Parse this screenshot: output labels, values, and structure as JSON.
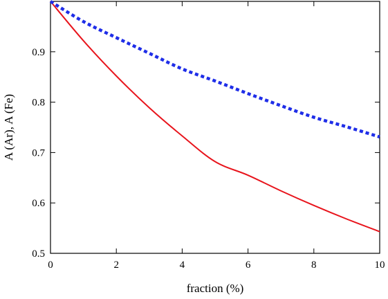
{
  "chart_data": {
    "type": "line",
    "title": "",
    "xlabel": "fraction (%)",
    "ylabel": "A (Ar), A (Fe)",
    "xlim": [
      0,
      10
    ],
    "ylim": [
      0.5,
      1.0
    ],
    "x_ticks": [
      0,
      2,
      4,
      6,
      8,
      10
    ],
    "x_tick_labels": [
      "0",
      "2",
      "4",
      "6",
      "8",
      "10"
    ],
    "y_ticks": [
      0.5,
      0.6,
      0.7,
      0.8,
      0.9
    ],
    "y_tick_labels": [
      "0.5",
      "0.6",
      "0.7",
      "0.8",
      "0.9"
    ],
    "grid": false,
    "legend": "none",
    "series": [
      {
        "color": "#e8141c",
        "style": "solid",
        "x": [
          0,
          1,
          2,
          3,
          4,
          5,
          6,
          7,
          8,
          9,
          10
        ],
        "y": [
          1.0,
          0.922,
          0.852,
          0.789,
          0.733,
          0.682,
          0.655,
          0.624,
          0.595,
          0.568,
          0.543
        ]
      },
      {
        "color": "#1f2ee8",
        "style": "dotted",
        "x": [
          0,
          1,
          2,
          3,
          4,
          5,
          6,
          7,
          8,
          9,
          10
        ],
        "y": [
          1.0,
          0.96,
          0.928,
          0.897,
          0.866,
          0.842,
          0.817,
          0.793,
          0.77,
          0.751,
          0.731
        ]
      }
    ]
  }
}
